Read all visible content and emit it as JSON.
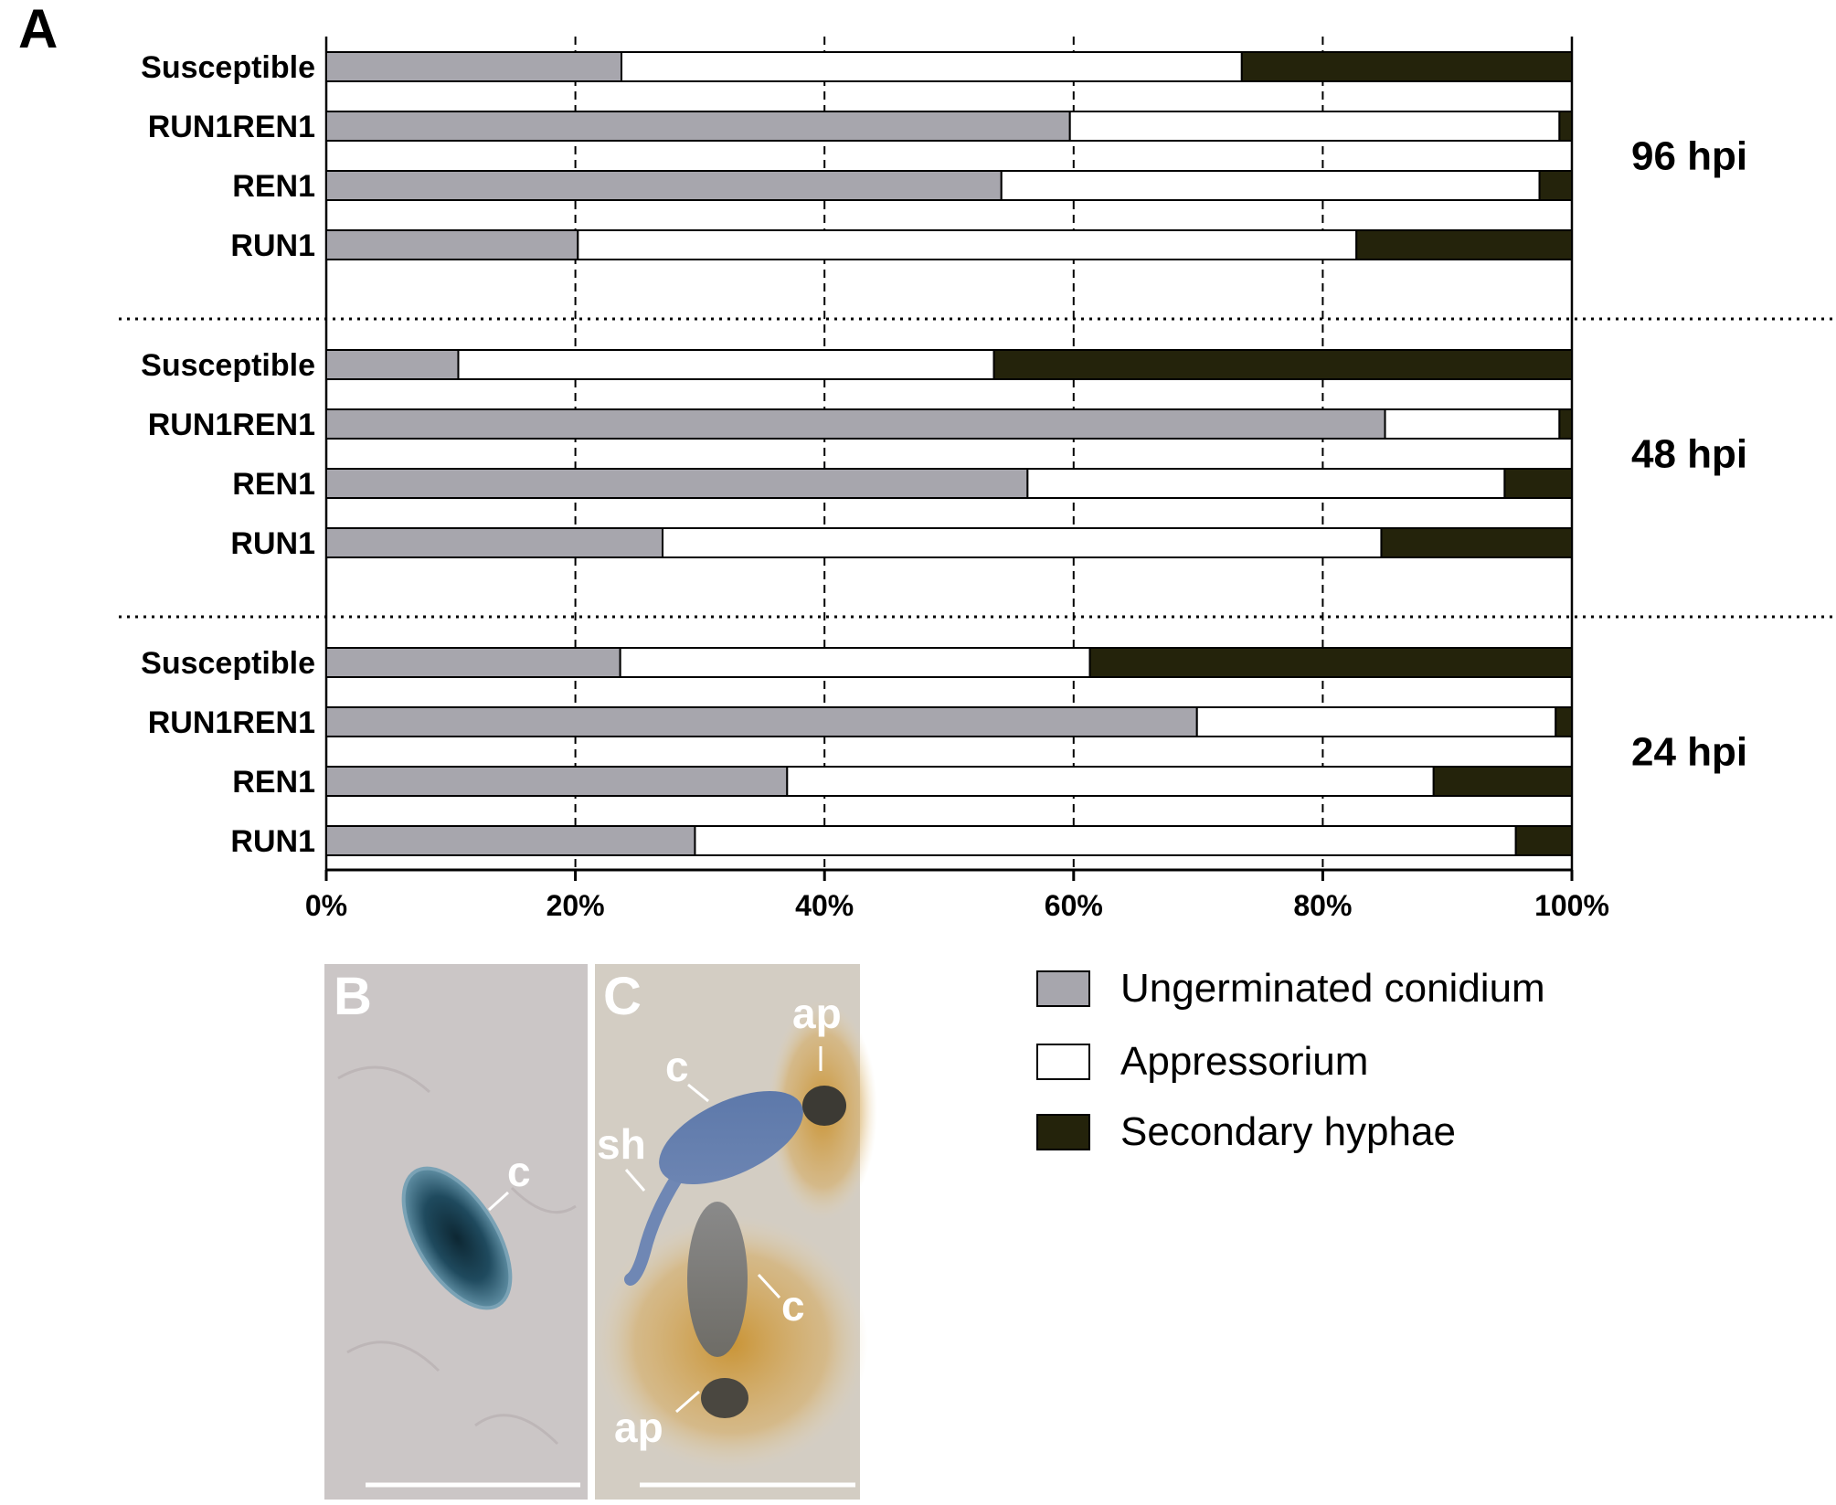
{
  "panel_labels": {
    "a": "A",
    "b": "B",
    "c": "C"
  },
  "colors": {
    "ungerminated": "#a7a6ad",
    "appressorium": "#ffffff",
    "secondary": "#24230b"
  },
  "chart_data": {
    "type": "bar",
    "orientation": "horizontal",
    "stacked": true,
    "normalized_percent": true,
    "xlim": [
      0,
      100
    ],
    "x_ticks": [
      "0%",
      "20%",
      "40%",
      "60%",
      "80%",
      "100%"
    ],
    "grid": "vertical dashed",
    "groups": [
      {
        "label": "96 hpi",
        "categories": [
          "Susceptible",
          "RUN1REN1",
          "REN1",
          "RUN1"
        ],
        "series": [
          {
            "name": "Ungerminated conidium",
            "values": [
              23.7,
              59.7,
              54.2,
              20.2
            ]
          },
          {
            "name": "Appressorium",
            "values": [
              49.8,
              39.3,
              43.2,
              62.5
            ]
          },
          {
            "name": "Secondary hyphae",
            "values": [
              26.5,
              1.0,
              2.6,
              17.3
            ]
          }
        ]
      },
      {
        "label": "48 hpi",
        "categories": [
          "Susceptible",
          "RUN1REN1",
          "REN1",
          "RUN1"
        ],
        "series": [
          {
            "name": "Ungerminated conidium",
            "values": [
              10.6,
              85.0,
              56.3,
              27.0
            ]
          },
          {
            "name": "Appressorium",
            "values": [
              43.0,
              14.0,
              38.3,
              57.7
            ]
          },
          {
            "name": "Secondary hyphae",
            "values": [
              46.4,
              1.0,
              5.4,
              15.3
            ]
          }
        ]
      },
      {
        "label": "24 hpi",
        "categories": [
          "Susceptible",
          "RUN1REN1",
          "REN1",
          "RUN1"
        ],
        "series": [
          {
            "name": "Ungerminated conidium",
            "values": [
              23.6,
              69.9,
              37.0,
              29.6
            ]
          },
          {
            "name": "Appressorium",
            "values": [
              37.7,
              28.8,
              51.9,
              65.9
            ]
          },
          {
            "name": "Secondary hyphae",
            "values": [
              38.7,
              1.3,
              11.1,
              4.5
            ]
          }
        ]
      }
    ],
    "legend": {
      "placement": "bottom-right",
      "items": [
        "Ungerminated conidium",
        "Appressorium",
        "Secondary hyphae"
      ]
    }
  },
  "micrograph_b": {
    "labels": {
      "c": "c"
    }
  },
  "micrograph_c": {
    "labels": {
      "ap_top": "ap",
      "c_top": "c",
      "sh": "sh",
      "c_bottom": "c",
      "ap_bottom": "ap"
    }
  }
}
